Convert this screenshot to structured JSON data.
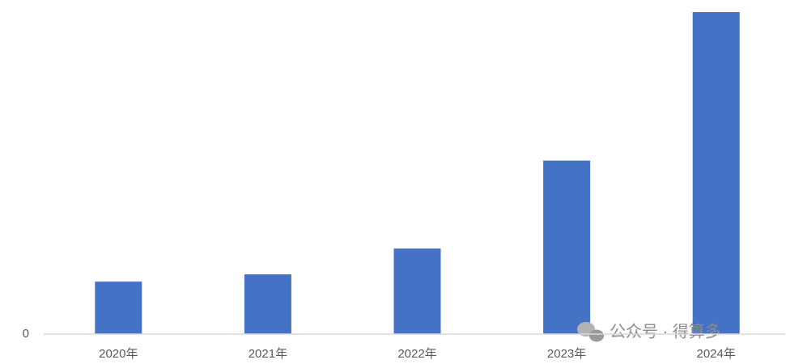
{
  "chart_data": {
    "type": "bar",
    "categories": [
      "2020年",
      "2021年",
      "2022年",
      "2023年",
      "2024年"
    ],
    "values": [
      65,
      74,
      106,
      215,
      399
    ],
    "color": "#4472c4",
    "ylim": [
      0,
      400
    ],
    "yticks": [
      0
    ],
    "grid": false,
    "annotations": [
      "公众号 · 得算多"
    ]
  }
}
